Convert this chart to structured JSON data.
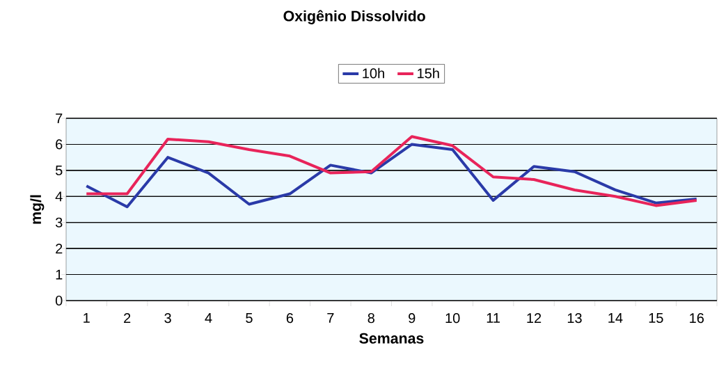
{
  "chart_data": {
    "type": "line",
    "title": "Oxigênio Dissolvido",
    "xlabel": "Semanas",
    "ylabel": "mg/l",
    "categories": [
      "1",
      "2",
      "3",
      "4",
      "5",
      "6",
      "7",
      "8",
      "9",
      "10",
      "11",
      "12",
      "13",
      "14",
      "15",
      "16"
    ],
    "series": [
      {
        "name": "10h",
        "color": "#2a3aa8",
        "values": [
          4.4,
          3.6,
          5.5,
          4.9,
          3.7,
          4.1,
          5.2,
          4.9,
          6.0,
          5.8,
          3.85,
          5.15,
          4.95,
          4.25,
          3.75,
          3.9
        ]
      },
      {
        "name": "15h",
        "color": "#e8245a",
        "values": [
          4.1,
          4.1,
          6.2,
          6.1,
          5.8,
          5.55,
          4.9,
          4.95,
          6.3,
          5.95,
          4.75,
          4.65,
          4.25,
          4.0,
          3.65,
          3.85
        ]
      }
    ],
    "ylim": [
      0,
      7
    ],
    "yticks": [
      0,
      1,
      2,
      3,
      4,
      5,
      6,
      7
    ],
    "grid": "y",
    "legend": "top",
    "marker": "none",
    "line_style": "solid"
  }
}
